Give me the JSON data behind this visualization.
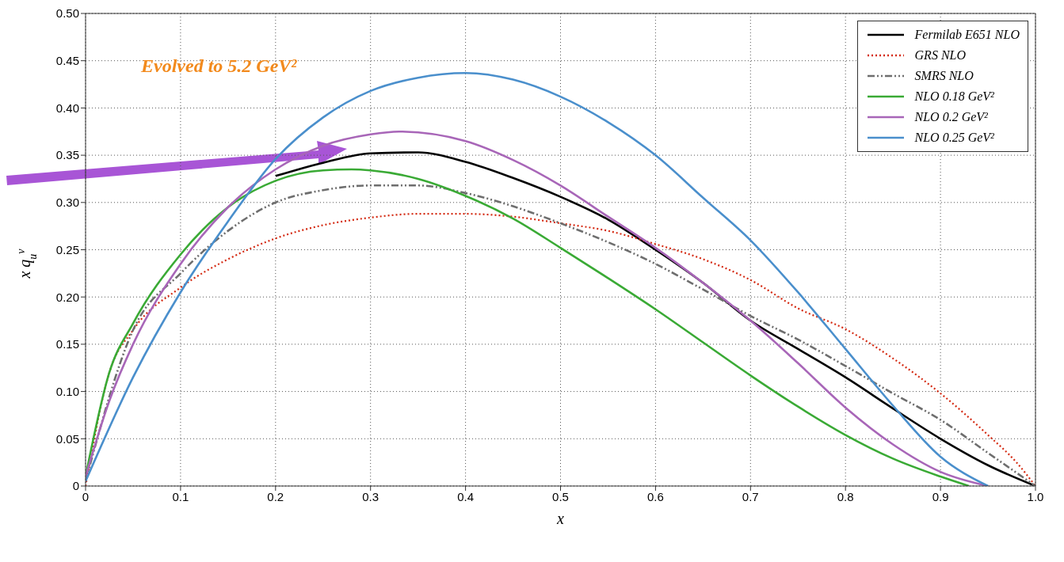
{
  "chart_data": {
    "type": "line",
    "xlabel": "x",
    "ylabel": "x q$_{u}$$^{v}$",
    "xlim": [
      0,
      1
    ],
    "ylim": [
      0,
      0.5
    ],
    "xticks": [
      {
        "value": 0,
        "label": "0"
      },
      0.1,
      0.2,
      0.3,
      0.4,
      0.5,
      0.6,
      0.7,
      0.8,
      0.9,
      {
        "value": 1,
        "label": "1.0"
      }
    ],
    "yticks": [
      {
        "value": 0,
        "label": "0"
      },
      {
        "value": 0.05,
        "label": "0.05"
      },
      {
        "value": 0.1,
        "label": "0.10"
      },
      {
        "value": 0.15,
        "label": "0.15"
      },
      {
        "value": 0.2,
        "label": "0.20"
      },
      {
        "value": 0.25,
        "label": "0.25"
      },
      {
        "value": 0.3,
        "label": "0.30"
      },
      {
        "value": 0.35,
        "label": "0.35"
      },
      {
        "value": 0.4,
        "label": "0.40"
      },
      {
        "value": 0.45,
        "label": "0.45"
      },
      {
        "value": 0.5,
        "label": "0.50"
      }
    ],
    "grid": true,
    "legend": "top right",
    "marker": "none",
    "annotations": [
      "Evolved to 5.2 GeV²"
    ],
    "series": [
      {
        "name": "Fermilab E651 NLO",
        "color": "#000000",
        "line_style": "solid",
        "x": [
          0.2,
          0.25,
          0.3,
          0.35,
          0.4,
          0.45,
          0.5,
          0.55,
          0.6,
          0.65,
          0.7,
          0.75,
          0.8,
          0.85,
          0.9,
          0.95,
          1.0
        ],
        "values": [
          0.328,
          0.342,
          0.352,
          0.353,
          0.343,
          0.326,
          0.306,
          0.282,
          0.25,
          0.215,
          0.175,
          0.145,
          0.115,
          0.082,
          0.05,
          0.022,
          0
        ]
      },
      {
        "name": "GRS NLO",
        "color": "#d42a12",
        "line_style": "dotted",
        "x": [
          0,
          0.025,
          0.05,
          0.1,
          0.15,
          0.2,
          0.25,
          0.3,
          0.35,
          0.4,
          0.45,
          0.5,
          0.55,
          0.6,
          0.65,
          0.7,
          0.75,
          0.8,
          0.85,
          0.9,
          0.95,
          0.98,
          1.0
        ],
        "values": [
          0,
          0.12,
          0.165,
          0.21,
          0.24,
          0.262,
          0.276,
          0.284,
          0.288,
          0.288,
          0.285,
          0.278,
          0.27,
          0.256,
          0.24,
          0.218,
          0.188,
          0.166,
          0.135,
          0.098,
          0.054,
          0.025,
          0
        ]
      },
      {
        "name": "SMRS NLO",
        "color": "#6e6e6e",
        "line_style": "dashdotdot",
        "x": [
          0,
          0.05,
          0.1,
          0.15,
          0.2,
          0.25,
          0.3,
          0.35,
          0.4,
          0.45,
          0.5,
          0.55,
          0.6,
          0.65,
          0.7,
          0.75,
          0.8,
          0.85,
          0.9,
          0.95,
          1.0
        ],
        "values": [
          0.005,
          0.165,
          0.225,
          0.27,
          0.3,
          0.313,
          0.318,
          0.318,
          0.31,
          0.296,
          0.278,
          0.258,
          0.235,
          0.208,
          0.18,
          0.155,
          0.127,
          0.098,
          0.07,
          0.035,
          0
        ]
      },
      {
        "name": "NLO 0.18 GeV²",
        "color": "#3aaa35",
        "line_style": "solid",
        "x": [
          0,
          0.025,
          0.05,
          0.1,
          0.15,
          0.2,
          0.25,
          0.28,
          0.3,
          0.35,
          0.4,
          0.45,
          0.5,
          0.55,
          0.6,
          0.65,
          0.7,
          0.75,
          0.8,
          0.85,
          0.9,
          0.93
        ],
        "values": [
          0.01,
          0.12,
          0.172,
          0.245,
          0.295,
          0.323,
          0.334,
          0.335,
          0.334,
          0.325,
          0.307,
          0.283,
          0.252,
          0.22,
          0.187,
          0.152,
          0.117,
          0.084,
          0.054,
          0.029,
          0.01,
          0
        ]
      },
      {
        "name": "NLO 0.2 GeV²",
        "color": "#a866b8",
        "line_style": "solid",
        "x": [
          0,
          0.025,
          0.05,
          0.1,
          0.15,
          0.2,
          0.25,
          0.3,
          0.33,
          0.4,
          0.45,
          0.5,
          0.55,
          0.6,
          0.65,
          0.7,
          0.75,
          0.8,
          0.85,
          0.9,
          0.95
        ],
        "values": [
          0.01,
          0.09,
          0.15,
          0.235,
          0.295,
          0.335,
          0.36,
          0.372,
          0.375,
          0.365,
          0.345,
          0.318,
          0.285,
          0.252,
          0.215,
          0.175,
          0.13,
          0.083,
          0.044,
          0.015,
          0
        ]
      },
      {
        "name": "NLO 0.25 GeV²",
        "color": "#4a8fcc",
        "line_style": "solid",
        "x": [
          0,
          0.05,
          0.1,
          0.15,
          0.2,
          0.25,
          0.3,
          0.35,
          0.4,
          0.45,
          0.5,
          0.55,
          0.6,
          0.65,
          0.7,
          0.75,
          0.8,
          0.85,
          0.9,
          0.95
        ],
        "values": [
          0.005,
          0.115,
          0.205,
          0.28,
          0.346,
          0.39,
          0.418,
          0.432,
          0.437,
          0.43,
          0.412,
          0.385,
          0.35,
          0.305,
          0.26,
          0.205,
          0.145,
          0.085,
          0.031,
          0
        ]
      }
    ]
  }
}
